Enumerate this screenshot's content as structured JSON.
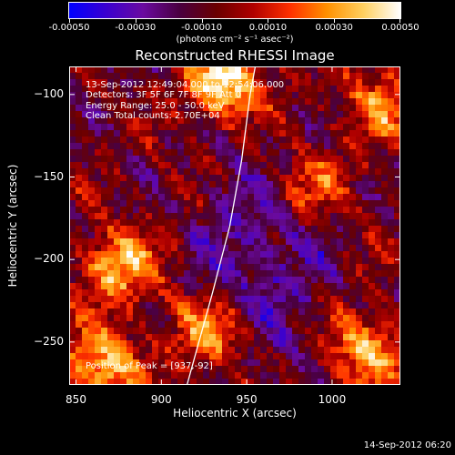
{
  "colorbar": {
    "tick_labels": [
      "-0.00050",
      "-0.00030",
      "-0.00010",
      "0.00010",
      "0.00030",
      "0.00050"
    ],
    "units": "(photons cm⁻² s⁻¹ asec⁻²)",
    "range": [
      -0.0005,
      0.0005
    ],
    "color_stops": [
      "#0000ff",
      "#3a00d0",
      "#6a0aa0",
      "#4a0040",
      "#6a0000",
      "#b00000",
      "#ff3000",
      "#ff9000",
      "#ffd060",
      "#ffffff"
    ]
  },
  "title": "Reconstructed RHESSI Image",
  "annotations": {
    "line1": "13-Sep-2012 12:49:04.000 to 12:54:06.000",
    "line2": "Detectors: 3F 5F 6F 7F 8F 9F   Att 0",
    "line3": "Energy Range: 25.0 - 50.0 keV",
    "line4": "Clean     Total counts: 2.70E+04",
    "peak": "Position of Peak = [937,-92]"
  },
  "chart_data": {
    "type": "heatmap",
    "title": "Reconstructed RHESSI Image",
    "xlabel": "Heliocentric X (arcsec)",
    "ylabel": "Heliocentric Y (arcsec)",
    "xlim": [
      846,
      1040
    ],
    "ylim": [
      -276,
      -83
    ],
    "x_ticks": [
      850,
      900,
      950,
      1000
    ],
    "y_ticks": [
      -100,
      -150,
      -200,
      -250
    ],
    "x_tick_labels": [
      "850",
      "900",
      "950",
      "1000"
    ],
    "y_tick_labels": [
      "−100",
      "−150",
      "−200",
      "−250"
    ],
    "value_units": "photons cm-2 s-1 asec-2",
    "color_range": [
      -0.0005,
      0.0005
    ],
    "peak_position": [
      937,
      -92
    ],
    "limb_curve": [
      [
        915,
        -276
      ],
      [
        930,
        -220
      ],
      [
        940,
        -180
      ],
      [
        947,
        -140
      ],
      [
        952,
        -100
      ],
      [
        955,
        -83
      ]
    ],
    "bright_regions": [
      {
        "x": 937,
        "y": -92,
        "level": 1.0
      },
      {
        "x": 875,
        "y": -205,
        "level": 0.8
      },
      {
        "x": 865,
        "y": -265,
        "level": 0.85
      },
      {
        "x": 930,
        "y": -245,
        "level": 0.7
      },
      {
        "x": 1020,
        "y": -255,
        "level": 0.75
      },
      {
        "x": 1030,
        "y": -105,
        "level": 0.6
      },
      {
        "x": 985,
        "y": -155,
        "level": 0.55
      }
    ]
  },
  "timestamp": "14-Sep-2012 06:20"
}
